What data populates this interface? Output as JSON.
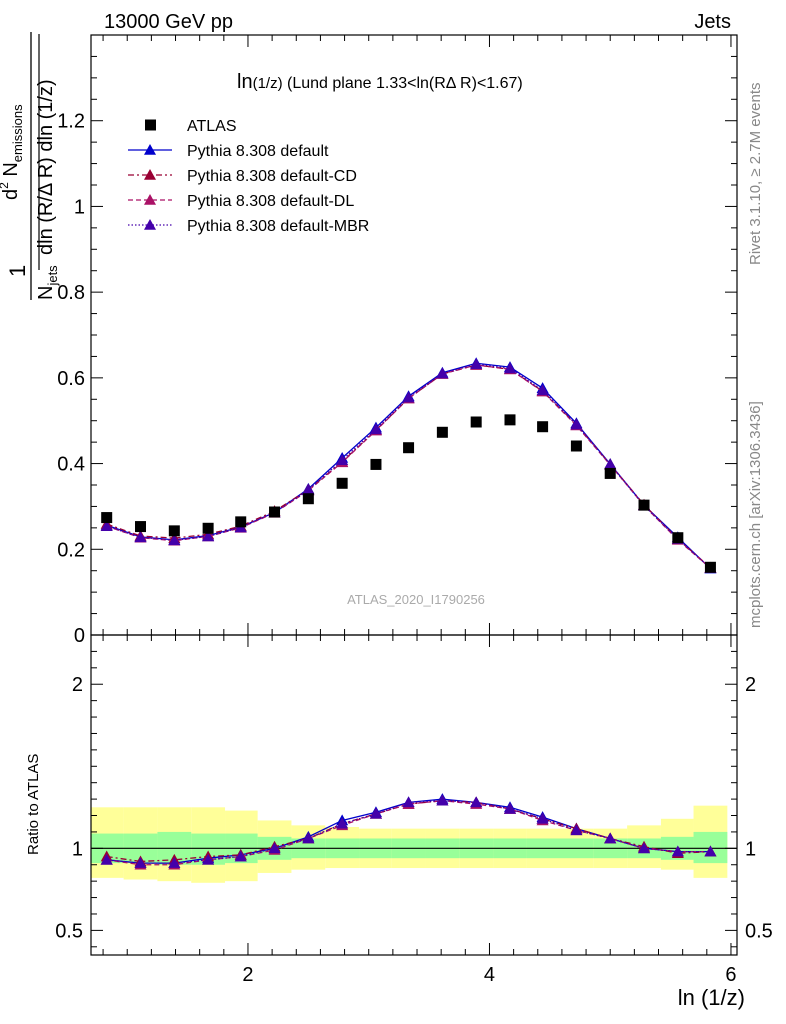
{
  "header": {
    "left": "13000 GeV pp",
    "right": "Jets"
  },
  "side_labels": {
    "rivet": "Rivet 3.1.10, ≥ 2.7M events",
    "mcplots": "mcplots.cern.ch [arXiv:1306.3436]"
  },
  "analysis_id": "ATLAS_2020_I1790256",
  "title": {
    "main": "ln",
    "sub": "(1/z)",
    "rest": " (Lund plane 1.33<ln(RΔ R)<1.67)"
  },
  "ratio_ylabel": "Ratio to ATLAS",
  "colors": {
    "data": "#000000",
    "default": "#0000cc",
    "cd": "#990033",
    "dl": "#aa1166",
    "mbr": "#4400aa",
    "band_inner": "#99ff99",
    "band_outer": "#ffff99"
  },
  "chart_data": {
    "type": "line",
    "title": "ln(1/z) (Lund plane 1.33<ln(RΔ R)<1.67)",
    "xlabel": "ln (1/z)",
    "ylabel": "1/N_jets d²N_emissions / dln(R/ΔR) dln(1/z)",
    "xlim": [
      0.7,
      6.05
    ],
    "ylim": [
      0,
      1.4
    ],
    "ratio_ylim": [
      0.35,
      2.3
    ],
    "xticks": [
      2,
      4,
      6
    ],
    "yticks": [
      0,
      0.2,
      0.4,
      0.6,
      0.8,
      1,
      1.2
    ],
    "ytick_labels": [
      "0",
      "0.2",
      "0.4",
      "0.6",
      "0.8",
      "1",
      "1.2"
    ],
    "ratio_yticks": [
      0.5,
      1,
      2
    ],
    "ratio_ytick_labels": [
      "0.5",
      "1",
      "2"
    ],
    "x": [
      0.83,
      1.11,
      1.39,
      1.67,
      1.94,
      2.22,
      2.5,
      2.78,
      3.06,
      3.33,
      3.61,
      3.89,
      4.17,
      4.44,
      4.72,
      5.0,
      5.28,
      5.56,
      5.83
    ],
    "bin_edges": [
      0.69,
      0.97,
      1.25,
      1.53,
      1.81,
      2.08,
      2.36,
      2.64,
      2.92,
      3.19,
      3.47,
      3.75,
      4.03,
      4.31,
      4.58,
      4.86,
      5.14,
      5.42,
      5.69,
      5.97
    ],
    "data": {
      "name": "ATLAS",
      "values": [
        0.274,
        0.253,
        0.243,
        0.249,
        0.264,
        0.287,
        0.318,
        0.354,
        0.398,
        0.437,
        0.473,
        0.497,
        0.502,
        0.486,
        0.441,
        0.377,
        0.303,
        0.227,
        0.158
      ],
      "band_inner": [
        [
          0.91,
          1.09
        ],
        [
          0.91,
          1.09
        ],
        [
          0.9,
          1.1
        ],
        [
          0.9,
          1.09
        ],
        [
          0.91,
          1.09
        ],
        [
          0.93,
          1.07
        ],
        [
          0.94,
          1.06
        ],
        [
          0.94,
          1.06
        ],
        [
          0.94,
          1.06
        ],
        [
          0.94,
          1.06
        ],
        [
          0.94,
          1.06
        ],
        [
          0.94,
          1.06
        ],
        [
          0.94,
          1.06
        ],
        [
          0.94,
          1.06
        ],
        [
          0.94,
          1.06
        ],
        [
          0.94,
          1.06
        ],
        [
          0.94,
          1.06
        ],
        [
          0.93,
          1.07
        ],
        [
          0.91,
          1.1
        ]
      ],
      "band_outer": [
        [
          0.82,
          1.25
        ],
        [
          0.81,
          1.25
        ],
        [
          0.8,
          1.25
        ],
        [
          0.79,
          1.25
        ],
        [
          0.8,
          1.23
        ],
        [
          0.85,
          1.17
        ],
        [
          0.87,
          1.14
        ],
        [
          0.88,
          1.13
        ],
        [
          0.88,
          1.12
        ],
        [
          0.88,
          1.12
        ],
        [
          0.88,
          1.12
        ],
        [
          0.88,
          1.12
        ],
        [
          0.88,
          1.12
        ],
        [
          0.88,
          1.12
        ],
        [
          0.88,
          1.12
        ],
        [
          0.88,
          1.12
        ],
        [
          0.88,
          1.14
        ],
        [
          0.87,
          1.18
        ],
        [
          0.82,
          1.26
        ]
      ]
    },
    "series": [
      {
        "name": "Pythia 8.308 default",
        "style": "solid",
        "color_key": "default",
        "values": [
          0.256,
          0.229,
          0.222,
          0.232,
          0.252,
          0.286,
          0.341,
          0.413,
          0.484,
          0.557,
          0.612,
          0.634,
          0.625,
          0.576,
          0.494,
          0.399,
          0.303,
          0.228,
          0.155
        ],
        "ratio": [
          0.93,
          0.91,
          0.91,
          0.94,
          0.96,
          1.0,
          1.07,
          1.17,
          1.22,
          1.28,
          1.3,
          1.28,
          1.25,
          1.19,
          1.12,
          1.06,
          1.0,
          0.98,
          0.98
        ]
      },
      {
        "name": "Pythia 8.308 default-CD",
        "style": "dashdot",
        "color_key": "cd",
        "values": [
          0.259,
          0.231,
          0.226,
          0.235,
          0.254,
          0.289,
          0.339,
          0.404,
          0.478,
          0.552,
          0.609,
          0.63,
          0.62,
          0.569,
          0.491,
          0.398,
          0.304,
          0.224,
          0.157
        ],
        "ratio": [
          0.95,
          0.92,
          0.93,
          0.95,
          0.96,
          1.01,
          1.06,
          1.15,
          1.21,
          1.27,
          1.29,
          1.28,
          1.24,
          1.18,
          1.12,
          1.06,
          1.01,
          0.97,
          0.98
        ]
      },
      {
        "name": "Pythia 8.308 default-DL",
        "style": "dashed",
        "color_key": "dl",
        "values": [
          0.254,
          0.227,
          0.22,
          0.23,
          0.25,
          0.285,
          0.337,
          0.403,
          0.477,
          0.552,
          0.609,
          0.63,
          0.62,
          0.568,
          0.489,
          0.397,
          0.302,
          0.222,
          0.156
        ],
        "ratio": [
          0.93,
          0.9,
          0.9,
          0.93,
          0.95,
          0.99,
          1.06,
          1.14,
          1.21,
          1.27,
          1.29,
          1.27,
          1.24,
          1.17,
          1.11,
          1.06,
          1.0,
          0.98,
          0.98
        ]
      },
      {
        "name": "Pythia 8.308 default-MBR",
        "style": "dotted",
        "color_key": "mbr",
        "values": [
          0.254,
          0.228,
          0.221,
          0.23,
          0.251,
          0.286,
          0.338,
          0.408,
          0.48,
          0.554,
          0.61,
          0.632,
          0.622,
          0.571,
          0.491,
          0.398,
          0.302,
          0.224,
          0.156
        ],
        "ratio": [
          0.93,
          0.91,
          0.91,
          0.93,
          0.95,
          1.0,
          1.06,
          1.15,
          1.21,
          1.28,
          1.29,
          1.28,
          1.24,
          1.18,
          1.11,
          1.06,
          1.0,
          0.98,
          0.98
        ]
      }
    ],
    "legend_placement": "top-left"
  }
}
